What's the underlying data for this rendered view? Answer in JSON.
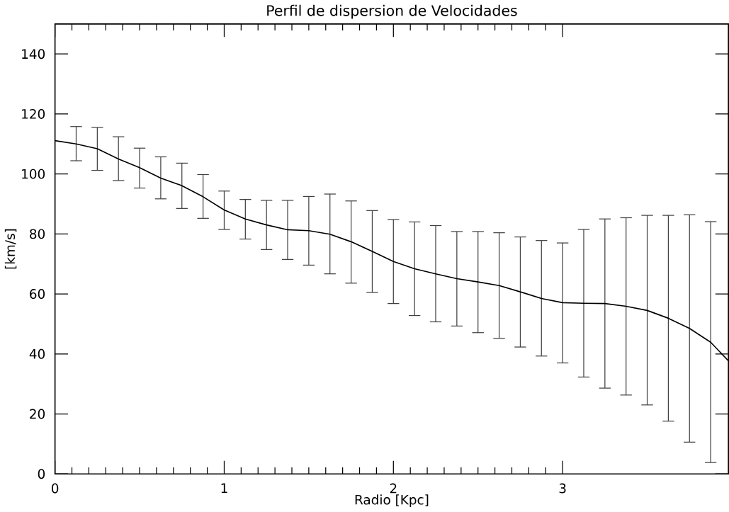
{
  "chart_data": {
    "type": "line",
    "title": "Perfil de dispersion de Velocidades",
    "xlabel": "Radio [Kpc]",
    "ylabel": "[km/s]",
    "x": [
      0,
      0.125,
      0.25,
      0.375,
      0.5,
      0.625,
      0.75,
      0.875,
      1,
      1.125,
      1.25,
      1.375,
      1.5,
      1.625,
      1.75,
      1.875,
      2,
      2.125,
      2.25,
      2.375,
      2.5,
      2.625,
      2.75,
      2.875,
      3,
      3.125,
      3.25,
      3.375,
      3.5,
      3.625,
      3.75,
      3.875,
      3.98
    ],
    "series": [
      {
        "color": "#000000",
        "values": [
          111.1,
          110.0,
          108.4,
          105.0,
          102.1,
          98.6,
          96.1,
          92.4,
          88.0,
          85.0,
          83.0,
          81.4,
          81.1,
          79.9,
          77.4,
          74.2,
          70.8,
          68.4,
          66.7,
          65.1,
          64.0,
          62.8,
          60.7,
          58.5,
          57.1,
          56.9,
          56.8,
          55.9,
          54.5,
          51.9,
          48.5,
          43.9,
          37.7
        ],
        "errors": [
          null,
          [
            104.4,
            115.8
          ],
          [
            101.2,
            115.5
          ],
          [
            97.8,
            112.4
          ],
          [
            95.3,
            108.6
          ],
          [
            91.7,
            105.7
          ],
          [
            88.5,
            103.6
          ],
          [
            85.2,
            99.8
          ],
          [
            81.5,
            94.3
          ],
          [
            78.3,
            91.5
          ],
          [
            74.8,
            91.2
          ],
          [
            71.5,
            91.2
          ],
          [
            69.6,
            92.5
          ],
          [
            66.7,
            93.3
          ],
          [
            63.6,
            91.0
          ],
          [
            60.5,
            87.8
          ],
          [
            56.8,
            84.8
          ],
          [
            52.8,
            84.0
          ],
          [
            50.7,
            82.8
          ],
          [
            49.3,
            80.8
          ],
          [
            47.1,
            80.8
          ],
          [
            45.2,
            80.4
          ],
          [
            42.3,
            79.0
          ],
          [
            39.3,
            77.8
          ],
          [
            37.0,
            77.0
          ],
          [
            32.3,
            81.5
          ],
          [
            28.6,
            85.0
          ],
          [
            26.3,
            85.4
          ],
          [
            23.0,
            86.2
          ],
          [
            17.6,
            86.2
          ],
          [
            10.6,
            86.4
          ],
          [
            3.8,
            84.1
          ],
          null
        ]
      }
    ],
    "xlim": [
      0,
      3.98
    ],
    "ylim": [
      0,
      150
    ],
    "xticks": [
      0,
      1,
      2,
      3
    ],
    "yticks": [
      0,
      20,
      40,
      60,
      80,
      100,
      120,
      140
    ],
    "marker": "none",
    "grid": false
  }
}
